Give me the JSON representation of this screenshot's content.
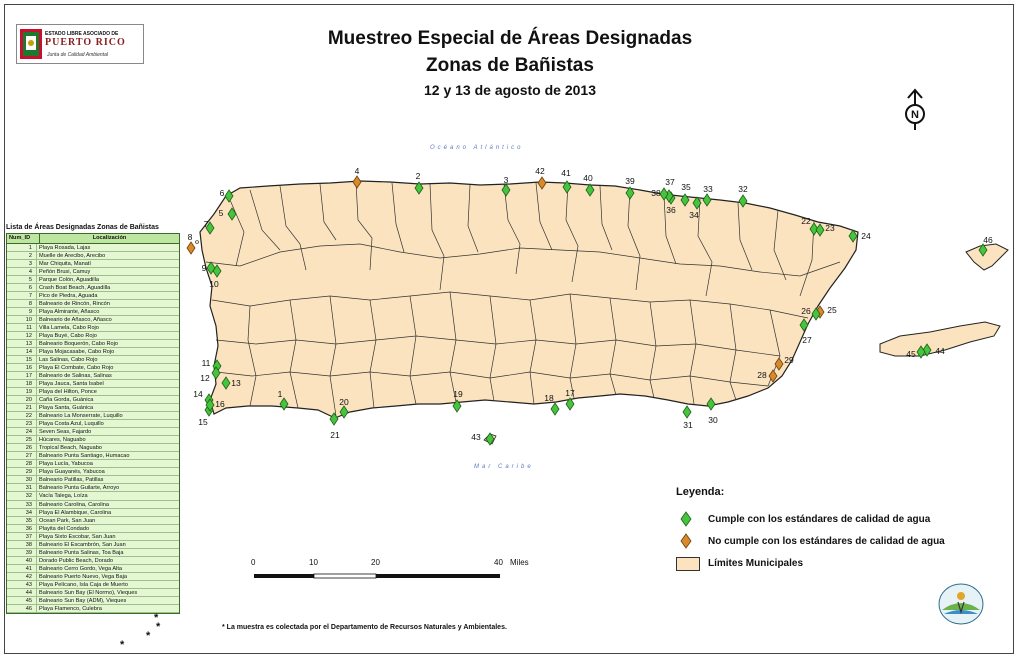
{
  "logo": {
    "line1": "ESTADO LIBRE ASOCIADO DE",
    "line2": "PUERTO RICO",
    "line3": "Junta de Calidad Ambiental"
  },
  "title": {
    "line1": "Muestreo Especial de Áreas Designadas",
    "line2": "Zonas de Bañistas",
    "line3": "12 y 13 de agosto de 2013"
  },
  "sea_labels": {
    "north": "Océano Atlántico",
    "south": "Mar Caribe"
  },
  "north_arrow": "N",
  "list": {
    "title": "Lista de Áreas Designadas Zonas de Bañistas",
    "columns": [
      "Num_ID",
      "Localización"
    ],
    "rows": [
      [
        "1",
        "Playa Rosada, Lajas"
      ],
      [
        "2",
        "Muelle de Arecibo, Arecibo"
      ],
      [
        "3",
        "Mar Chiquita, Manatí"
      ],
      [
        "4",
        "Peñón Brusi, Camuy"
      ],
      [
        "5",
        "Parque Colón, Aguadilla"
      ],
      [
        "6",
        "Crash Boat Beach, Aguadilla"
      ],
      [
        "7",
        "Pico de Piedra, Aguada"
      ],
      [
        "8",
        "Balneario de Rincón, Rincón"
      ],
      [
        "9",
        "Playa Almirante, Añasco"
      ],
      [
        "10",
        "Balneario de Añasco, Añasco"
      ],
      [
        "11",
        "Villa Lamela, Cabo Rojo"
      ],
      [
        "12",
        "Playa Buyé, Cabo Rojo"
      ],
      [
        "13",
        "Balneario Boquerón, Cabo Rojo"
      ],
      [
        "14",
        "Playa Mojacasabe, Cabo Rojo"
      ],
      [
        "15",
        "Las Salinas, Cabo Rojo"
      ],
      [
        "16",
        "Playa El Combate, Cabo Rojo"
      ],
      [
        "17",
        "Balneario de Salinas, Salinas"
      ],
      [
        "18",
        "Playa Jauca, Santa Isabel"
      ],
      [
        "19",
        "Playa del Hilton, Ponce"
      ],
      [
        "20",
        "Caña Gorda, Guánica"
      ],
      [
        "21",
        "Playa Santa, Guánica"
      ],
      [
        "22",
        "Balneario La Monserrate, Luquillo"
      ],
      [
        "23",
        "Playa Costa Azul, Luquillo"
      ],
      [
        "24",
        "Seven Seas, Fajardo"
      ],
      [
        "25",
        "Húcares, Naguabo"
      ],
      [
        "26",
        "Tropical Beach, Naguabo"
      ],
      [
        "27",
        "Balneario Punta Santiago, Humacao"
      ],
      [
        "28",
        "Playa Lucía, Yabucoa"
      ],
      [
        "29",
        "Playa Guayanés, Yabucoa"
      ],
      [
        "30",
        "Balneario Patillas, Patillas"
      ],
      [
        "31",
        "Balneario Punta Guilarte, Arroyo"
      ],
      [
        "32",
        "Vacía Talega, Loíza"
      ],
      [
        "33",
        "Balneario Carolina, Carolina"
      ],
      [
        "34",
        "Playa El Alambique, Carolina"
      ],
      [
        "35",
        "Ocean Park, San Juan"
      ],
      [
        "36",
        "Playita del Condado"
      ],
      [
        "37",
        "Playa Sixto Escobar, San Juan"
      ],
      [
        "38",
        "Balneario El Escambrón, San Juan"
      ],
      [
        "39",
        "Balneario Punta Salinas, Toa Baja"
      ],
      [
        "40",
        "Dorado Public Beach, Dorado"
      ],
      [
        "41",
        "Balneario Cerro Gordo, Vega Alta"
      ],
      [
        "42",
        "Balneario Puerto Nuevo, Vega Baja"
      ],
      [
        "43",
        "Playa Pelícano, Isla Caja de Muerto"
      ],
      [
        "44",
        "Balneario Sun Bay (El Normo), Vieques"
      ],
      [
        "45",
        "Balneario Sun Bay (ADM), Vieques"
      ],
      [
        "46",
        "Playa Flamenco, Culebra"
      ]
    ]
  },
  "sites": [
    {
      "id": "1",
      "status": "pass"
    },
    {
      "id": "2",
      "status": "pass"
    },
    {
      "id": "3",
      "status": "pass"
    },
    {
      "id": "4",
      "status": "fail"
    },
    {
      "id": "5",
      "status": "pass"
    },
    {
      "id": "6",
      "status": "pass"
    },
    {
      "id": "7",
      "status": "pass"
    },
    {
      "id": "8",
      "status": "fail"
    },
    {
      "id": "9",
      "status": "pass"
    },
    {
      "id": "10",
      "status": "pass"
    },
    {
      "id": "11",
      "status": "pass"
    },
    {
      "id": "12",
      "status": "pass"
    },
    {
      "id": "13",
      "status": "pass"
    },
    {
      "id": "14",
      "status": "pass"
    },
    {
      "id": "15",
      "status": "pass"
    },
    {
      "id": "16",
      "status": "pass"
    },
    {
      "id": "17",
      "status": "pass"
    },
    {
      "id": "18",
      "status": "pass"
    },
    {
      "id": "19",
      "status": "pass"
    },
    {
      "id": "20",
      "status": "pass"
    },
    {
      "id": "21",
      "status": "pass"
    },
    {
      "id": "22",
      "status": "pass"
    },
    {
      "id": "23",
      "status": "pass"
    },
    {
      "id": "24",
      "status": "pass"
    },
    {
      "id": "25",
      "status": "fail"
    },
    {
      "id": "26",
      "status": "pass"
    },
    {
      "id": "27",
      "status": "pass"
    },
    {
      "id": "28",
      "status": "fail"
    },
    {
      "id": "29",
      "status": "fail"
    },
    {
      "id": "30",
      "status": "pass"
    },
    {
      "id": "31",
      "status": "pass"
    },
    {
      "id": "32",
      "status": "pass"
    },
    {
      "id": "33",
      "status": "pass"
    },
    {
      "id": "34",
      "status": "pass"
    },
    {
      "id": "35",
      "status": "pass"
    },
    {
      "id": "36",
      "status": "pass"
    },
    {
      "id": "37",
      "status": "pass"
    },
    {
      "id": "38",
      "status": "pass"
    },
    {
      "id": "39",
      "status": "pass"
    },
    {
      "id": "40",
      "status": "pass"
    },
    {
      "id": "41",
      "status": "pass"
    },
    {
      "id": "42",
      "status": "fail"
    },
    {
      "id": "43",
      "status": "pass"
    },
    {
      "id": "44",
      "status": "pass"
    },
    {
      "id": "45",
      "status": "pass"
    },
    {
      "id": "46",
      "status": "pass"
    }
  ],
  "legend": {
    "title": "Leyenda:",
    "pass_label": "Cumple con los estándares de calidad de agua",
    "fail_label": "No cumple con los estándares de calidad de agua",
    "municipal_label": "Límites Municipales"
  },
  "scale": {
    "ticks": [
      "0",
      "10",
      "20",
      "40"
    ],
    "unit": "Miles"
  },
  "footnote": "La muestra es colectada por el Departamento de Recursos Naturales y Ambientales.",
  "colors": {
    "pass": "#46c43d",
    "fail": "#d9892b",
    "land": "#fbe3bf",
    "list_bg": "#e4f6d2"
  }
}
